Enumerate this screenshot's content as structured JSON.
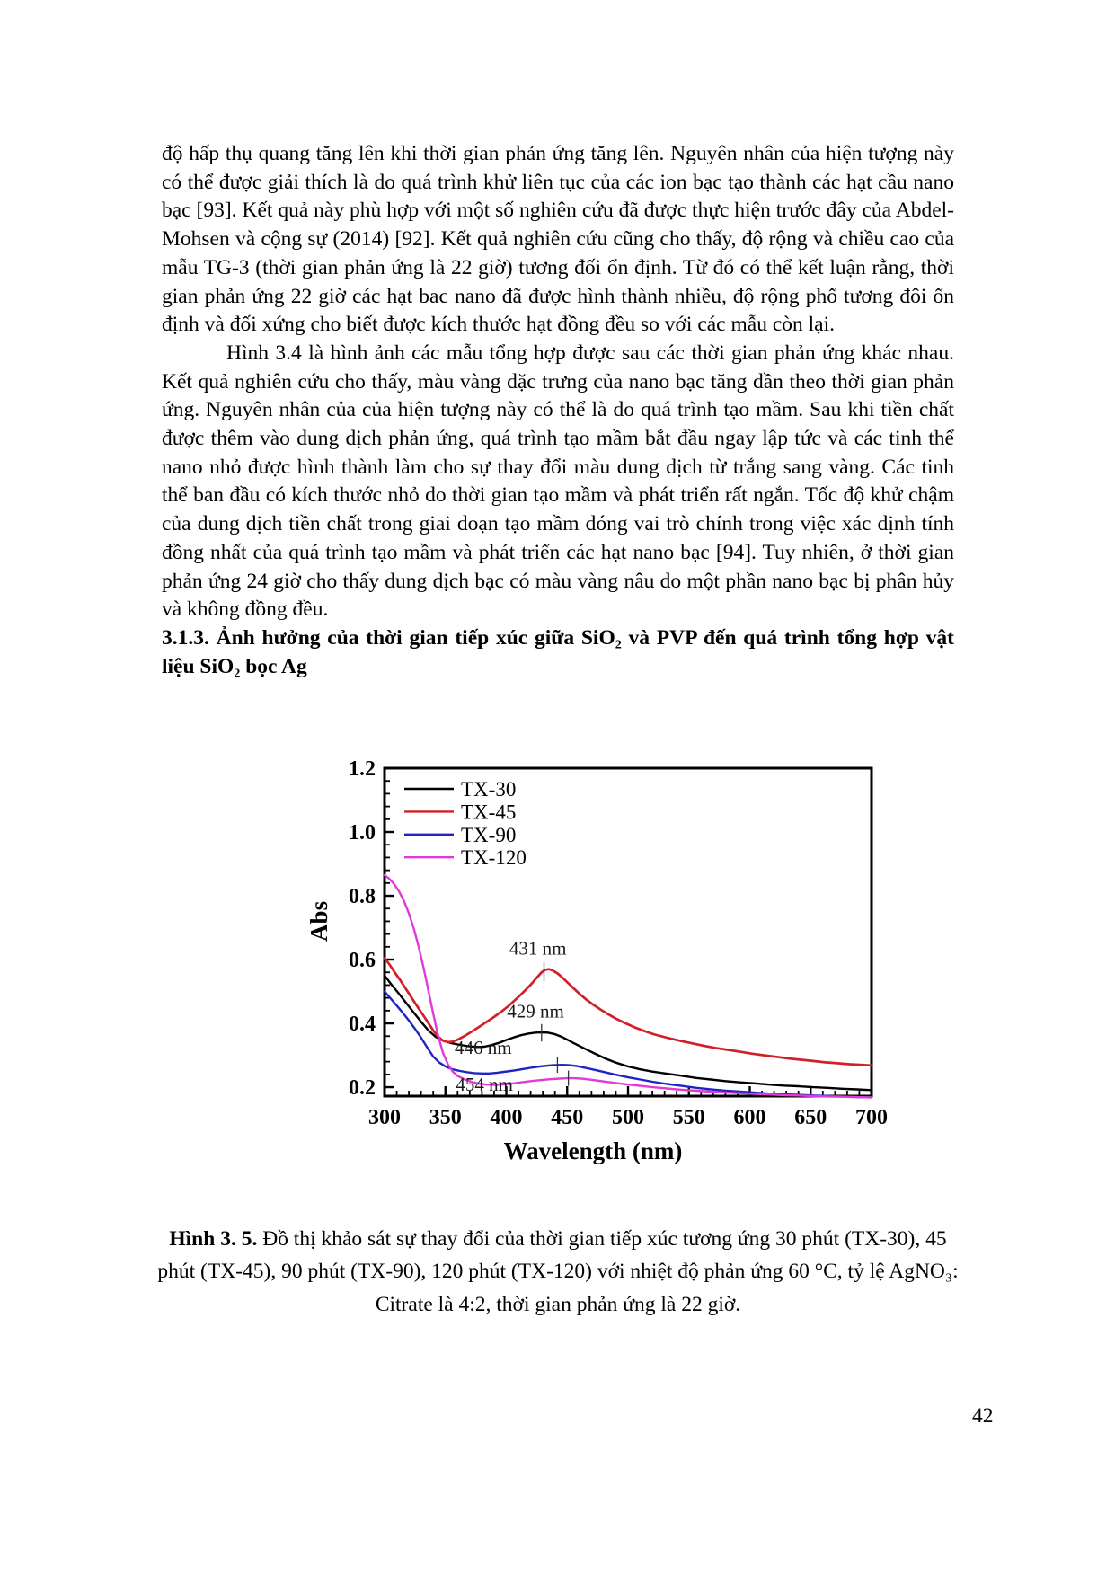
{
  "page": {
    "number": "42"
  },
  "body": {
    "paragraph1": "độ hấp thụ quang tăng lên khi thời gian phản ứng tăng lên. Nguyên nhân của hiện tượng này có thể được giải thích là do quá trình khử liên tục của các ion bạc tạo thành các hạt cầu nano bạc [93]. Kết quả này phù hợp với một số nghiên cứu đã được thực hiện trước đây của Abdel-Mohsen và cộng sự (2014) [92]. Kết quả nghiên cứu cũng cho thấy, độ rộng và chiều cao của mẫu TG-3 (thời gian phản ứng là 22 giờ) tương đối ổn định. Từ đó có thể kết luận rằng, thời gian phản ứng 22 giờ các hạt bac nano đã được hình thành nhiều, độ rộng phổ tương đôi ổn định và đối xứng cho biết được kích thước hạt đồng đều so với các mẫu còn lại.",
    "paragraph2": "Hình 3.4 là hình ảnh các mẫu tổng hợp được sau các thời gian phản ứng khác nhau. Kết quả nghiên cứu cho thấy, màu vàng đặc trưng của nano bạc tăng dần theo thời gian phản ứng. Nguyên nhân của của hiện tượng này có thể là do quá trình tạo mầm. Sau khi tiền chất được thêm vào dung dịch phản ứng, quá trình tạo mầm bắt đầu ngay lập tức và các tinh thể nano nhỏ được hình thành làm cho sự thay đổi màu dung dịch từ trắng sang vàng. Các tinh thể ban đầu có kích thước nhỏ do thời gian tạo mầm và phát triển rất ngắn. Tốc độ khử chậm của dung dịch tiền chất trong giai đoạn tạo mầm đóng vai trò chính trong việc xác định tính đồng nhất của quá trình tạo mầm và phát triển các hạt nano bạc [94]. Tuy nhiên, ở thời gian phản ứng 24 giờ cho thấy dung dịch bạc có màu vàng nâu do một phần nano bạc bị phân hủy và không đồng đều.",
    "heading": "3.1.3. Ảnh hưởng của thời gian tiếp xúc giữa SiO₂ và PVP đến quá trình tổng hợp vật liệu SiO₂ bọc Ag"
  },
  "figure": {
    "caption_bold": "Hình 3. 5.",
    "caption_text": " Đồ thị khảo sát sự thay đổi của thời gian tiếp xúc tương ứng 30 phút (TX-30), 45 phút (TX-45), 90 phút (TX-90), 120 phút (TX-120) với nhiệt độ phản ứng 60 °C, tỷ lệ AgNO₃: Citrate là 4:2, thời gian phản ứng là 22 giờ."
  },
  "chart_data": {
    "type": "line",
    "title": "",
    "xlabel": "Wavelength (nm)",
    "ylabel": "Abs",
    "xlim": [
      300,
      700
    ],
    "ylim": [
      0.172,
      1.2
    ],
    "x_ticks": [
      300,
      350,
      400,
      450,
      500,
      550,
      600,
      650,
      700
    ],
    "y_ticks": [
      0.2,
      0.4,
      0.6,
      0.8,
      1.0,
      1.2
    ],
    "x_minor_step": 10,
    "y_minor_step": 0.04,
    "grid": false,
    "legend_position": "top-left",
    "series": [
      {
        "name": "TX-30",
        "color": "#000000",
        "width": 2.4,
        "points": [
          [
            300,
            0.55
          ],
          [
            306,
            0.52
          ],
          [
            312,
            0.492
          ],
          [
            318,
            0.463
          ],
          [
            324,
            0.434
          ],
          [
            330,
            0.405
          ],
          [
            336,
            0.378
          ],
          [
            342,
            0.358
          ],
          [
            348,
            0.346
          ],
          [
            354,
            0.339
          ],
          [
            360,
            0.334
          ],
          [
            368,
            0.329
          ],
          [
            376,
            0.326
          ],
          [
            382,
            0.327
          ],
          [
            388,
            0.332
          ],
          [
            394,
            0.339
          ],
          [
            400,
            0.348
          ],
          [
            406,
            0.356
          ],
          [
            412,
            0.363
          ],
          [
            418,
            0.368
          ],
          [
            424,
            0.371
          ],
          [
            429,
            0.372
          ],
          [
            434,
            0.371
          ],
          [
            440,
            0.366
          ],
          [
            446,
            0.357
          ],
          [
            452,
            0.345
          ],
          [
            458,
            0.333
          ],
          [
            466,
            0.318
          ],
          [
            474,
            0.303
          ],
          [
            482,
            0.289
          ],
          [
            490,
            0.277
          ],
          [
            500,
            0.265
          ],
          [
            510,
            0.256
          ],
          [
            520,
            0.249
          ],
          [
            532,
            0.242
          ],
          [
            544,
            0.236
          ],
          [
            556,
            0.229
          ],
          [
            568,
            0.224
          ],
          [
            580,
            0.219
          ],
          [
            592,
            0.215
          ],
          [
            604,
            0.212
          ],
          [
            616,
            0.208
          ],
          [
            628,
            0.205
          ],
          [
            640,
            0.203
          ],
          [
            652,
            0.2
          ],
          [
            664,
            0.198
          ],
          [
            676,
            0.195
          ],
          [
            688,
            0.193
          ],
          [
            700,
            0.191
          ]
        ]
      },
      {
        "name": "TX-45",
        "color": "#d1202a",
        "width": 2.7,
        "points": [
          [
            300,
            0.605
          ],
          [
            304,
            0.585
          ],
          [
            308,
            0.562
          ],
          [
            312,
            0.54
          ],
          [
            316,
            0.517
          ],
          [
            320,
            0.494
          ],
          [
            324,
            0.47
          ],
          [
            328,
            0.447
          ],
          [
            332,
            0.424
          ],
          [
            336,
            0.401
          ],
          [
            340,
            0.378
          ],
          [
            344,
            0.358
          ],
          [
            348,
            0.346
          ],
          [
            352,
            0.341
          ],
          [
            356,
            0.343
          ],
          [
            360,
            0.349
          ],
          [
            366,
            0.361
          ],
          [
            372,
            0.375
          ],
          [
            378,
            0.39
          ],
          [
            384,
            0.405
          ],
          [
            390,
            0.42
          ],
          [
            396,
            0.437
          ],
          [
            402,
            0.455
          ],
          [
            408,
            0.476
          ],
          [
            414,
            0.498
          ],
          [
            420,
            0.521
          ],
          [
            425,
            0.543
          ],
          [
            429,
            0.56
          ],
          [
            432,
            0.568
          ],
          [
            435,
            0.57
          ],
          [
            438,
            0.566
          ],
          [
            442,
            0.557
          ],
          [
            446,
            0.544
          ],
          [
            450,
            0.529
          ],
          [
            455,
            0.511
          ],
          [
            460,
            0.493
          ],
          [
            466,
            0.474
          ],
          [
            472,
            0.457
          ],
          [
            478,
            0.442
          ],
          [
            484,
            0.428
          ],
          [
            490,
            0.415
          ],
          [
            498,
            0.4
          ],
          [
            506,
            0.387
          ],
          [
            514,
            0.375
          ],
          [
            522,
            0.365
          ],
          [
            532,
            0.355
          ],
          [
            542,
            0.346
          ],
          [
            552,
            0.338
          ],
          [
            562,
            0.33
          ],
          [
            572,
            0.323
          ],
          [
            582,
            0.317
          ],
          [
            592,
            0.311
          ],
          [
            602,
            0.305
          ],
          [
            612,
            0.3
          ],
          [
            622,
            0.295
          ],
          [
            632,
            0.29
          ],
          [
            642,
            0.286
          ],
          [
            652,
            0.282
          ],
          [
            662,
            0.278
          ],
          [
            672,
            0.275
          ],
          [
            682,
            0.272
          ],
          [
            692,
            0.27
          ],
          [
            700,
            0.268
          ]
        ]
      },
      {
        "name": "TX-90",
        "color": "#1f25c0",
        "width": 2.4,
        "points": [
          [
            300,
            0.5
          ],
          [
            305,
            0.478
          ],
          [
            310,
            0.456
          ],
          [
            315,
            0.433
          ],
          [
            320,
            0.409
          ],
          [
            325,
            0.383
          ],
          [
            330,
            0.355
          ],
          [
            335,
            0.325
          ],
          [
            340,
            0.296
          ],
          [
            345,
            0.277
          ],
          [
            350,
            0.265
          ],
          [
            356,
            0.256
          ],
          [
            362,
            0.251
          ],
          [
            368,
            0.247
          ],
          [
            374,
            0.244
          ],
          [
            380,
            0.243
          ],
          [
            386,
            0.243
          ],
          [
            392,
            0.245
          ],
          [
            398,
            0.248
          ],
          [
            406,
            0.252
          ],
          [
            414,
            0.257
          ],
          [
            422,
            0.262
          ],
          [
            430,
            0.266
          ],
          [
            438,
            0.269
          ],
          [
            446,
            0.27
          ],
          [
            452,
            0.269
          ],
          [
            458,
            0.266
          ],
          [
            466,
            0.26
          ],
          [
            474,
            0.253
          ],
          [
            482,
            0.246
          ],
          [
            490,
            0.239
          ],
          [
            500,
            0.231
          ],
          [
            510,
            0.224
          ],
          [
            520,
            0.217
          ],
          [
            532,
            0.21
          ],
          [
            544,
            0.204
          ],
          [
            556,
            0.198
          ],
          [
            568,
            0.193
          ],
          [
            580,
            0.189
          ],
          [
            592,
            0.186
          ],
          [
            604,
            0.183
          ],
          [
            616,
            0.18
          ],
          [
            628,
            0.178
          ],
          [
            640,
            0.176
          ],
          [
            652,
            0.174
          ],
          [
            664,
            0.172
          ],
          [
            676,
            0.171
          ],
          [
            688,
            0.169
          ],
          [
            700,
            0.168
          ]
        ]
      },
      {
        "name": "TX-120",
        "color": "#e23ad8",
        "width": 2.4,
        "points": [
          [
            300,
            0.865
          ],
          [
            304,
            0.853
          ],
          [
            308,
            0.836
          ],
          [
            312,
            0.813
          ],
          [
            316,
            0.783
          ],
          [
            320,
            0.745
          ],
          [
            324,
            0.698
          ],
          [
            328,
            0.641
          ],
          [
            332,
            0.575
          ],
          [
            336,
            0.503
          ],
          [
            340,
            0.43
          ],
          [
            344,
            0.362
          ],
          [
            348,
            0.308
          ],
          [
            352,
            0.272
          ],
          [
            356,
            0.249
          ],
          [
            360,
            0.235
          ],
          [
            366,
            0.224
          ],
          [
            372,
            0.216
          ],
          [
            378,
            0.211
          ],
          [
            384,
            0.208
          ],
          [
            390,
            0.207
          ],
          [
            396,
            0.208
          ],
          [
            404,
            0.211
          ],
          [
            412,
            0.215
          ],
          [
            420,
            0.219
          ],
          [
            428,
            0.222
          ],
          [
            436,
            0.225
          ],
          [
            444,
            0.227
          ],
          [
            450,
            0.228
          ],
          [
            456,
            0.228
          ],
          [
            464,
            0.226
          ],
          [
            472,
            0.222
          ],
          [
            480,
            0.218
          ],
          [
            490,
            0.213
          ],
          [
            500,
            0.208
          ],
          [
            510,
            0.204
          ],
          [
            520,
            0.2
          ],
          [
            532,
            0.196
          ],
          [
            544,
            0.192
          ],
          [
            556,
            0.189
          ],
          [
            568,
            0.186
          ],
          [
            580,
            0.183
          ],
          [
            592,
            0.181
          ],
          [
            604,
            0.179
          ],
          [
            616,
            0.177
          ],
          [
            628,
            0.175
          ],
          [
            640,
            0.174
          ],
          [
            652,
            0.172
          ],
          [
            664,
            0.171
          ],
          [
            676,
            0.17
          ],
          [
            688,
            0.169
          ],
          [
            700,
            0.168
          ]
        ]
      }
    ],
    "annotations": [
      {
        "label": "431 nm",
        "tick_nm": 431,
        "tick_from": 0.532,
        "tick_to": 0.592,
        "label_nm": 426,
        "label_abs": 0.615
      },
      {
        "label": "429 nm",
        "tick_nm": 429,
        "tick_from": 0.343,
        "tick_to": 0.398,
        "label_nm": 424,
        "label_abs": 0.418
      },
      {
        "label": "446 nm",
        "tick_nm": 442,
        "tick_from": 0.245,
        "tick_to": 0.296,
        "label_nm": 381,
        "label_abs": 0.304
      },
      {
        "label": "454 nm",
        "tick_nm": 451,
        "tick_from": 0.204,
        "tick_to": 0.252,
        "label_nm": 382,
        "label_abs": 0.189
      }
    ]
  }
}
